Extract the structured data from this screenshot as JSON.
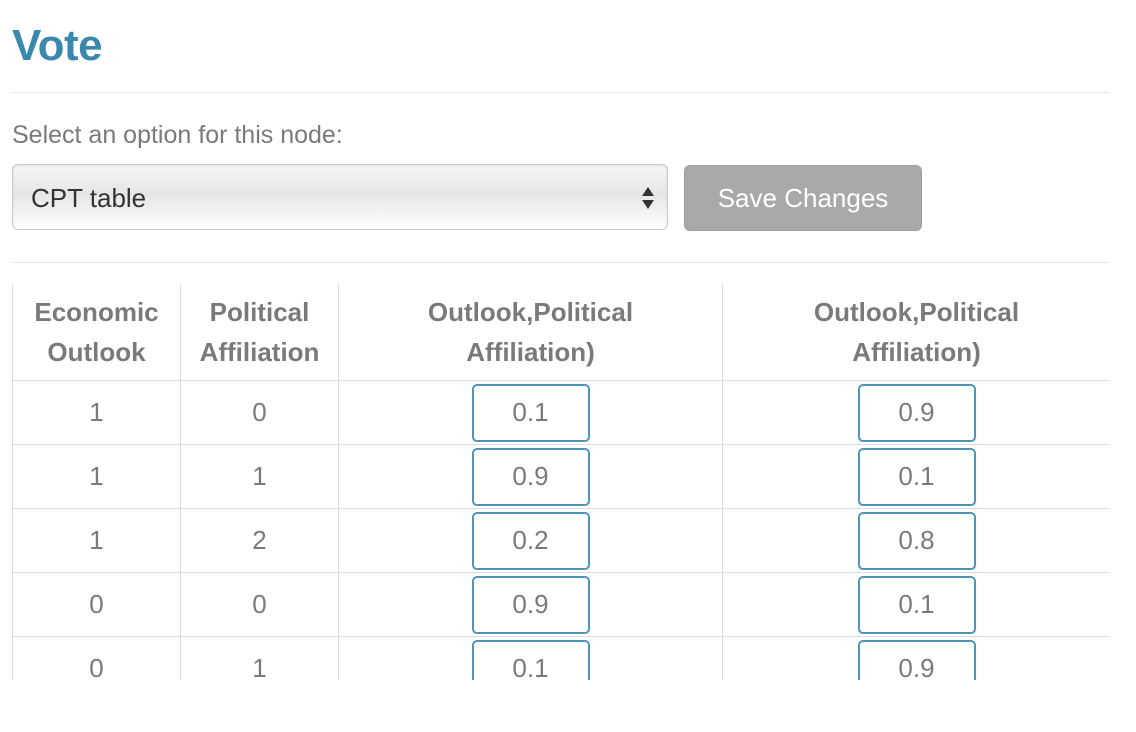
{
  "page": {
    "title": "Vote",
    "select_label": "Select an option for this node:",
    "select_value": "CPT table",
    "save_label": "Save Changes"
  },
  "table": {
    "headers": [
      {
        "line1": "Economic",
        "line2": "Outlook"
      },
      {
        "line1": "Political",
        "line2": "Affiliation"
      },
      {
        "line1": "Outlook,Political",
        "line2": "Affiliation)"
      },
      {
        "line1": "Outlook,Political",
        "line2": "Affiliation)"
      }
    ],
    "rows": [
      {
        "outlook": "1",
        "affiliation": "0",
        "p1": "0.1",
        "p2": "0.9"
      },
      {
        "outlook": "1",
        "affiliation": "1",
        "p1": "0.9",
        "p2": "0.1"
      },
      {
        "outlook": "1",
        "affiliation": "2",
        "p1": "0.2",
        "p2": "0.8"
      },
      {
        "outlook": "0",
        "affiliation": "0",
        "p1": "0.9",
        "p2": "0.1"
      },
      {
        "outlook": "0",
        "affiliation": "1",
        "p1": "0.1",
        "p2": "0.9"
      }
    ]
  },
  "colors": {
    "title": "#3a88ad",
    "input_border": "#4f95b4",
    "button_bg": "#a9a9a9",
    "text_muted": "#7a7a7a"
  },
  "icons": {
    "select_arrows": "up-down-arrows-icon"
  }
}
